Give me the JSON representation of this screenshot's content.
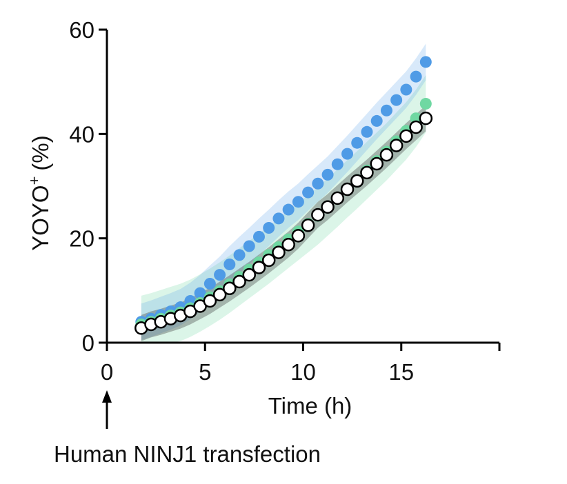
{
  "chart_data": {
    "type": "scatter",
    "title": "",
    "xlabel": "Time (h)",
    "ylabel": "YOYO",
    "ylabel_superscript": "+",
    "ylabel_unit": "(%)",
    "xlim": [
      0,
      20
    ],
    "ylim": [
      0,
      60
    ],
    "x_ticks": [
      0,
      5,
      10,
      15
    ],
    "y_ticks": [
      0,
      20,
      40,
      60
    ],
    "grid": false,
    "legend": "none",
    "annotation": "Human NINJ1 transfection",
    "annotation_x": 0,
    "colors": {
      "blue": "#4f9be6",
      "green": "#6fd8a2",
      "black": "#000000"
    },
    "series": [
      {
        "name": "blue",
        "x": [
          1.75,
          2.25,
          2.75,
          3.25,
          3.75,
          4.25,
          4.75,
          5.25,
          5.75,
          6.25,
          6.75,
          7.25,
          7.75,
          8.25,
          8.75,
          9.25,
          9.75,
          10.25,
          10.75,
          11.25,
          11.75,
          12.25,
          12.75,
          13.25,
          13.75,
          14.25,
          14.75,
          15.25,
          15.75,
          16.25
        ],
        "y": [
          4.0,
          4.6,
          5.3,
          6.0,
          6.8,
          8.0,
          9.5,
          11.3,
          13.0,
          15.0,
          16.8,
          18.5,
          20.3,
          22.0,
          23.8,
          25.5,
          27.0,
          28.8,
          30.5,
          32.2,
          34.2,
          36.2,
          38.3,
          40.4,
          42.5,
          44.5,
          46.5,
          48.5,
          51.0,
          53.8
        ],
        "band": 3.5
      },
      {
        "name": "green",
        "x": [
          1.75,
          2.25,
          2.75,
          3.25,
          3.75,
          4.25,
          4.75,
          5.25,
          5.75,
          6.25,
          6.75,
          7.25,
          7.75,
          8.25,
          8.75,
          9.25,
          9.75,
          10.25,
          10.75,
          11.25,
          11.75,
          12.25,
          12.75,
          13.25,
          13.75,
          14.25,
          14.75,
          15.25,
          15.75,
          16.25
        ],
        "y": [
          3.5,
          4.0,
          4.6,
          5.2,
          5.8,
          6.6,
          7.6,
          8.7,
          9.9,
          11.2,
          12.6,
          14.0,
          15.4,
          16.8,
          18.3,
          19.8,
          21.3,
          22.8,
          24.3,
          26.0,
          27.7,
          29.5,
          31.2,
          33.0,
          34.8,
          36.6,
          38.6,
          40.6,
          43.0,
          45.8
        ],
        "band": 5.5
      },
      {
        "name": "black",
        "x": [
          1.75,
          2.25,
          2.75,
          3.25,
          3.75,
          4.25,
          4.75,
          5.25,
          5.75,
          6.25,
          6.75,
          7.25,
          7.75,
          8.25,
          8.75,
          9.25,
          9.75,
          10.25,
          10.75,
          11.25,
          11.75,
          12.25,
          12.75,
          13.25,
          13.75,
          14.25,
          14.75,
          15.25,
          15.75,
          16.25
        ],
        "y": [
          2.8,
          3.5,
          4.0,
          4.6,
          5.2,
          6.0,
          7.0,
          8.0,
          9.2,
          10.4,
          11.7,
          13.0,
          14.4,
          15.8,
          17.3,
          18.8,
          20.5,
          22.5,
          24.5,
          26.0,
          27.7,
          29.4,
          31.0,
          32.6,
          34.3,
          36.0,
          37.8,
          39.6,
          41.3,
          43.0
        ],
        "band": 2.5
      }
    ]
  }
}
